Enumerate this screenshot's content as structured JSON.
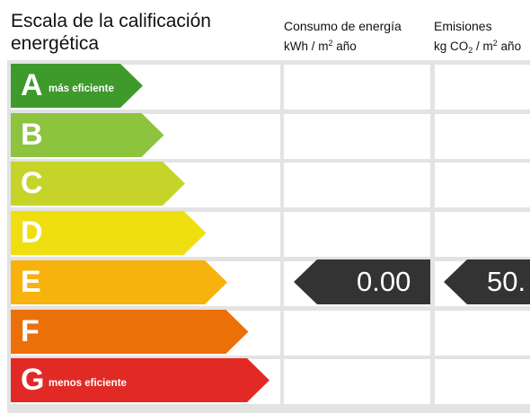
{
  "title": "Escala de la calificación energética",
  "columns": {
    "energy": {
      "line1": "Consumo de energía",
      "line2_pre": "kWh / m",
      "line2_sup": "2",
      "line2_post": " año"
    },
    "co2": {
      "line1": "Emisiones",
      "line2_pre": "kg CO",
      "line2_sub": "2",
      "line2_mid": " / m",
      "line2_sup": "2",
      "line2_post": " año"
    }
  },
  "ratings": [
    {
      "letter": "A",
      "sub": "más eficiente",
      "color": "#3e9a2b"
    },
    {
      "letter": "B",
      "sub": "",
      "color": "#8cc43e"
    },
    {
      "letter": "C",
      "sub": "",
      "color": "#c6d42a"
    },
    {
      "letter": "D",
      "sub": "",
      "color": "#f0df10"
    },
    {
      "letter": "E",
      "sub": "",
      "color": "#f7b20d"
    },
    {
      "letter": "F",
      "sub": "",
      "color": "#ec7008"
    },
    {
      "letter": "G",
      "sub": "menos eficiente",
      "color": "#e12a26"
    }
  ],
  "current_rating": "E",
  "energy_value": "0.00",
  "co2_value": "50.",
  "indicator_color": "#333333"
}
